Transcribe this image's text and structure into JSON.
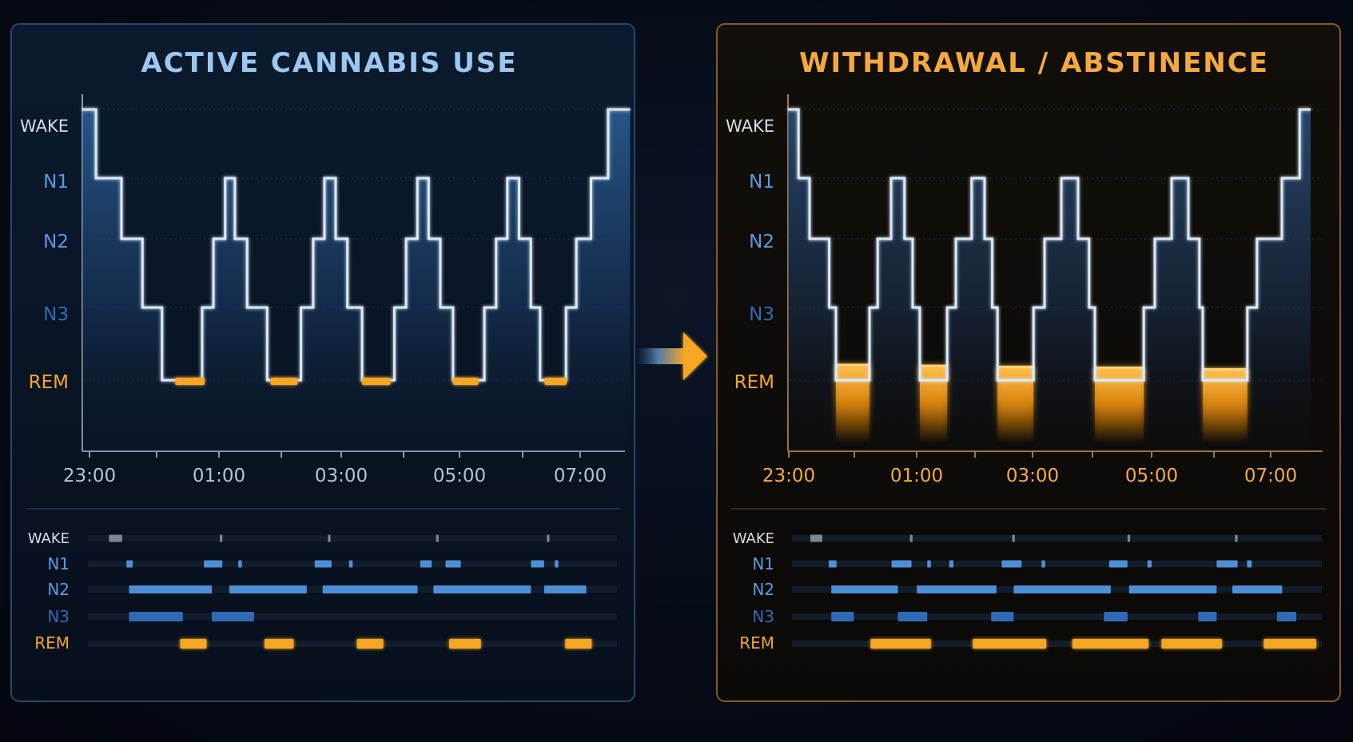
{
  "arrow_icon": "right-arrow-icon",
  "colors": {
    "background": "#050a14",
    "active_border": "#2a4668",
    "active_title": "#9cc8f0",
    "active_fill": "#2b5a8c",
    "withdrawal_border": "#8a5a1c",
    "withdrawal_title": "#f4a940",
    "hypnogram_line": "#dbe9f7",
    "rem": "#f5a623",
    "n2_bar": "#4d8fd6",
    "n3_bar": "#2f6bb5",
    "wake_bar": "#7c8794",
    "stage_label_blue": "#5b9be0",
    "wake_label": "#d6dde6"
  },
  "stages": [
    "WAKE",
    "N1",
    "N2",
    "N3",
    "REM"
  ],
  "panels": [
    {
      "key": "active",
      "title": "ACTIVE CANNABIS USE",
      "times": [
        "23:00",
        "01:00",
        "03:00",
        "05:00",
        "07:00"
      ],
      "hypnogram": [
        [
          0,
          0
        ],
        [
          0.028,
          1
        ],
        [
          0.08,
          2
        ],
        [
          0.123,
          3
        ],
        [
          0.163,
          4
        ],
        [
          0.245,
          3
        ],
        [
          0.268,
          2
        ],
        [
          0.292,
          1
        ],
        [
          0.312,
          2
        ],
        [
          0.337,
          3
        ],
        [
          0.378,
          4
        ],
        [
          0.447,
          3
        ],
        [
          0.472,
          2
        ],
        [
          0.495,
          1
        ],
        [
          0.518,
          2
        ],
        [
          0.542,
          3
        ],
        [
          0.572,
          4
        ],
        [
          0.638,
          3
        ],
        [
          0.662,
          2
        ],
        [
          0.685,
          1
        ],
        [
          0.708,
          2
        ],
        [
          0.732,
          3
        ],
        [
          0.758,
          4
        ],
        [
          0.822,
          3
        ],
        [
          0.846,
          2
        ],
        [
          0.869,
          1
        ],
        [
          0.893,
          2
        ],
        [
          0.917,
          3
        ],
        [
          0.936,
          4
        ],
        [
          0.989,
          3
        ],
        [
          1.01,
          2
        ],
        [
          1.04,
          1
        ],
        [
          1.075,
          0
        ],
        [
          1.12,
          0
        ]
      ],
      "rem_marks": [
        [
          0.19,
          0.25
        ],
        [
          0.385,
          0.44
        ],
        [
          0.572,
          0.63
        ],
        [
          0.758,
          0.81
        ],
        [
          0.945,
          0.99
        ]
      ],
      "strip": {
        "WAKE": [
          [
            0.04,
            0.065
          ],
          [
            0.25,
            0.255
          ],
          [
            0.455,
            0.46
          ],
          [
            0.66,
            0.665
          ],
          [
            0.87,
            0.875
          ]
        ],
        "N1": [
          [
            0.073,
            0.085
          ],
          [
            0.22,
            0.255
          ],
          [
            0.285,
            0.292
          ],
          [
            0.43,
            0.462
          ],
          [
            0.495,
            0.502
          ],
          [
            0.63,
            0.652
          ],
          [
            0.678,
            0.707
          ],
          [
            0.84,
            0.865
          ],
          [
            0.885,
            0.892
          ]
        ],
        "N2": [
          [
            0.078,
            0.235
          ],
          [
            0.268,
            0.415
          ],
          [
            0.445,
            0.625
          ],
          [
            0.655,
            0.84
          ],
          [
            0.865,
            0.945
          ]
        ],
        "N3": [
          [
            0.078,
            0.18
          ],
          [
            0.235,
            0.315
          ]
        ],
        "REM": [
          [
            0.175,
            0.225
          ],
          [
            0.335,
            0.39
          ],
          [
            0.51,
            0.56
          ],
          [
            0.685,
            0.745
          ],
          [
            0.905,
            0.955
          ]
        ]
      }
    },
    {
      "key": "withdrawal",
      "title": "WITHDRAWAL / ABSTINENCE",
      "times": [
        "23:00",
        "01:00",
        "03:00",
        "05:00",
        "07:00"
      ],
      "hypnogram": [
        [
          0,
          0
        ],
        [
          0.022,
          1
        ],
        [
          0.045,
          2
        ],
        [
          0.086,
          3
        ],
        [
          0.1,
          4
        ],
        [
          0.17,
          3
        ],
        [
          0.187,
          2
        ],
        [
          0.215,
          1
        ],
        [
          0.243,
          2
        ],
        [
          0.26,
          3
        ],
        [
          0.275,
          4
        ],
        [
          0.332,
          3
        ],
        [
          0.35,
          2
        ],
        [
          0.383,
          1
        ],
        [
          0.41,
          2
        ],
        [
          0.426,
          3
        ],
        [
          0.437,
          4
        ],
        [
          0.512,
          3
        ],
        [
          0.535,
          2
        ],
        [
          0.57,
          1
        ],
        [
          0.605,
          2
        ],
        [
          0.628,
          3
        ],
        [
          0.64,
          4
        ],
        [
          0.742,
          3
        ],
        [
          0.765,
          2
        ],
        [
          0.8,
          1
        ],
        [
          0.835,
          2
        ],
        [
          0.858,
          3
        ],
        [
          0.865,
          4
        ],
        [
          0.958,
          3
        ],
        [
          0.978,
          2
        ],
        [
          1.03,
          1
        ],
        [
          1.067,
          0
        ],
        [
          1.09,
          0
        ]
      ],
      "rem_blocks": [
        [
          0.1,
          0.17,
          0.12
        ],
        [
          0.275,
          0.332,
          0.1
        ],
        [
          0.437,
          0.512,
          0.08
        ],
        [
          0.64,
          0.742,
          0.06
        ],
        [
          0.865,
          0.958,
          0.03
        ]
      ],
      "strip": {
        "WAKE": [
          [
            0.035,
            0.058
          ],
          [
            0.225,
            0.23
          ],
          [
            0.42,
            0.425
          ],
          [
            0.64,
            0.645
          ],
          [
            0.845,
            0.85
          ]
        ],
        "N1": [
          [
            0.07,
            0.085
          ],
          [
            0.19,
            0.228
          ],
          [
            0.258,
            0.265
          ],
          [
            0.3,
            0.308
          ],
          [
            0.4,
            0.438
          ],
          [
            0.476,
            0.483
          ],
          [
            0.605,
            0.64
          ],
          [
            0.678,
            0.686
          ],
          [
            0.81,
            0.85
          ],
          [
            0.868,
            0.877
          ]
        ],
        "N2": [
          [
            0.075,
            0.202
          ],
          [
            0.238,
            0.39
          ],
          [
            0.423,
            0.608
          ],
          [
            0.643,
            0.81
          ],
          [
            0.84,
            0.935
          ]
        ],
        "N3": [
          [
            0.075,
            0.118
          ],
          [
            0.202,
            0.258
          ],
          [
            0.38,
            0.423
          ],
          [
            0.595,
            0.64
          ],
          [
            0.775,
            0.81
          ],
          [
            0.925,
            0.962
          ]
        ],
        "REM": [
          [
            0.15,
            0.265
          ],
          [
            0.345,
            0.485
          ],
          [
            0.535,
            0.68
          ],
          [
            0.705,
            0.82
          ],
          [
            0.9,
            1.0
          ]
        ]
      }
    }
  ]
}
